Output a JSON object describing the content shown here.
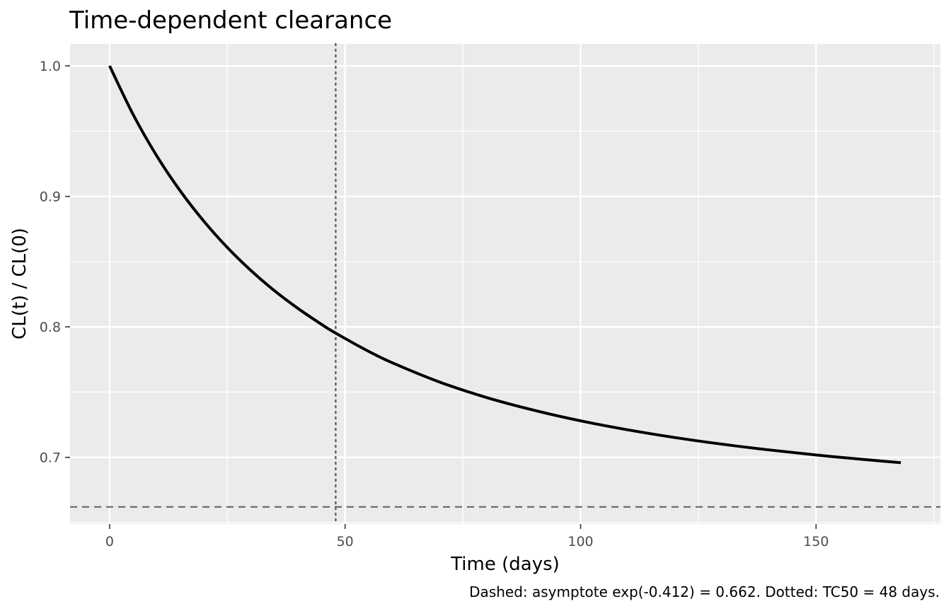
{
  "chart_data": {
    "type": "line",
    "title": "Time-dependent clearance",
    "xlabel": "Time (days)",
    "ylabel": "CL(t) / CL(0)",
    "caption": "Dashed: asymptote exp(-0.412) = 0.662. Dotted: TC50 = 48 days.",
    "xlim": [
      -8.4,
      176.4
    ],
    "ylim": [
      0.6489,
      1.0169
    ],
    "x_ticks": [
      0,
      50,
      100,
      150
    ],
    "x_tick_labels": [
      "0",
      "50",
      "100",
      "150"
    ],
    "y_ticks": [
      0.7,
      0.8,
      0.9,
      1.0
    ],
    "y_tick_labels": [
      "0.7",
      "0.8",
      "0.9",
      "1.0"
    ],
    "grid": true,
    "series": [
      {
        "x": [
          0,
          5,
          10,
          15,
          20,
          25,
          30,
          35,
          40,
          45,
          48,
          55,
          60,
          70,
          80,
          90,
          100,
          110,
          120,
          130,
          140,
          150,
          160,
          168
        ],
        "y": [
          1.0,
          0.9627,
          0.9311,
          0.9042,
          0.881,
          0.8608,
          0.8432,
          0.8277,
          0.8141,
          0.8019,
          0.7952,
          0.7812,
          0.7725,
          0.7578,
          0.7459,
          0.7362,
          0.728,
          0.7211,
          0.7152,
          0.7101,
          0.7057,
          0.7018,
          0.6984,
          0.6959
        ],
        "color": "#000000"
      }
    ],
    "reference_lines": [
      {
        "orientation": "horizontal",
        "value": 0.662,
        "style": "dashed",
        "color": "#666666"
      },
      {
        "orientation": "vertical",
        "value": 48,
        "style": "dotted",
        "color": "#666666"
      }
    ]
  }
}
